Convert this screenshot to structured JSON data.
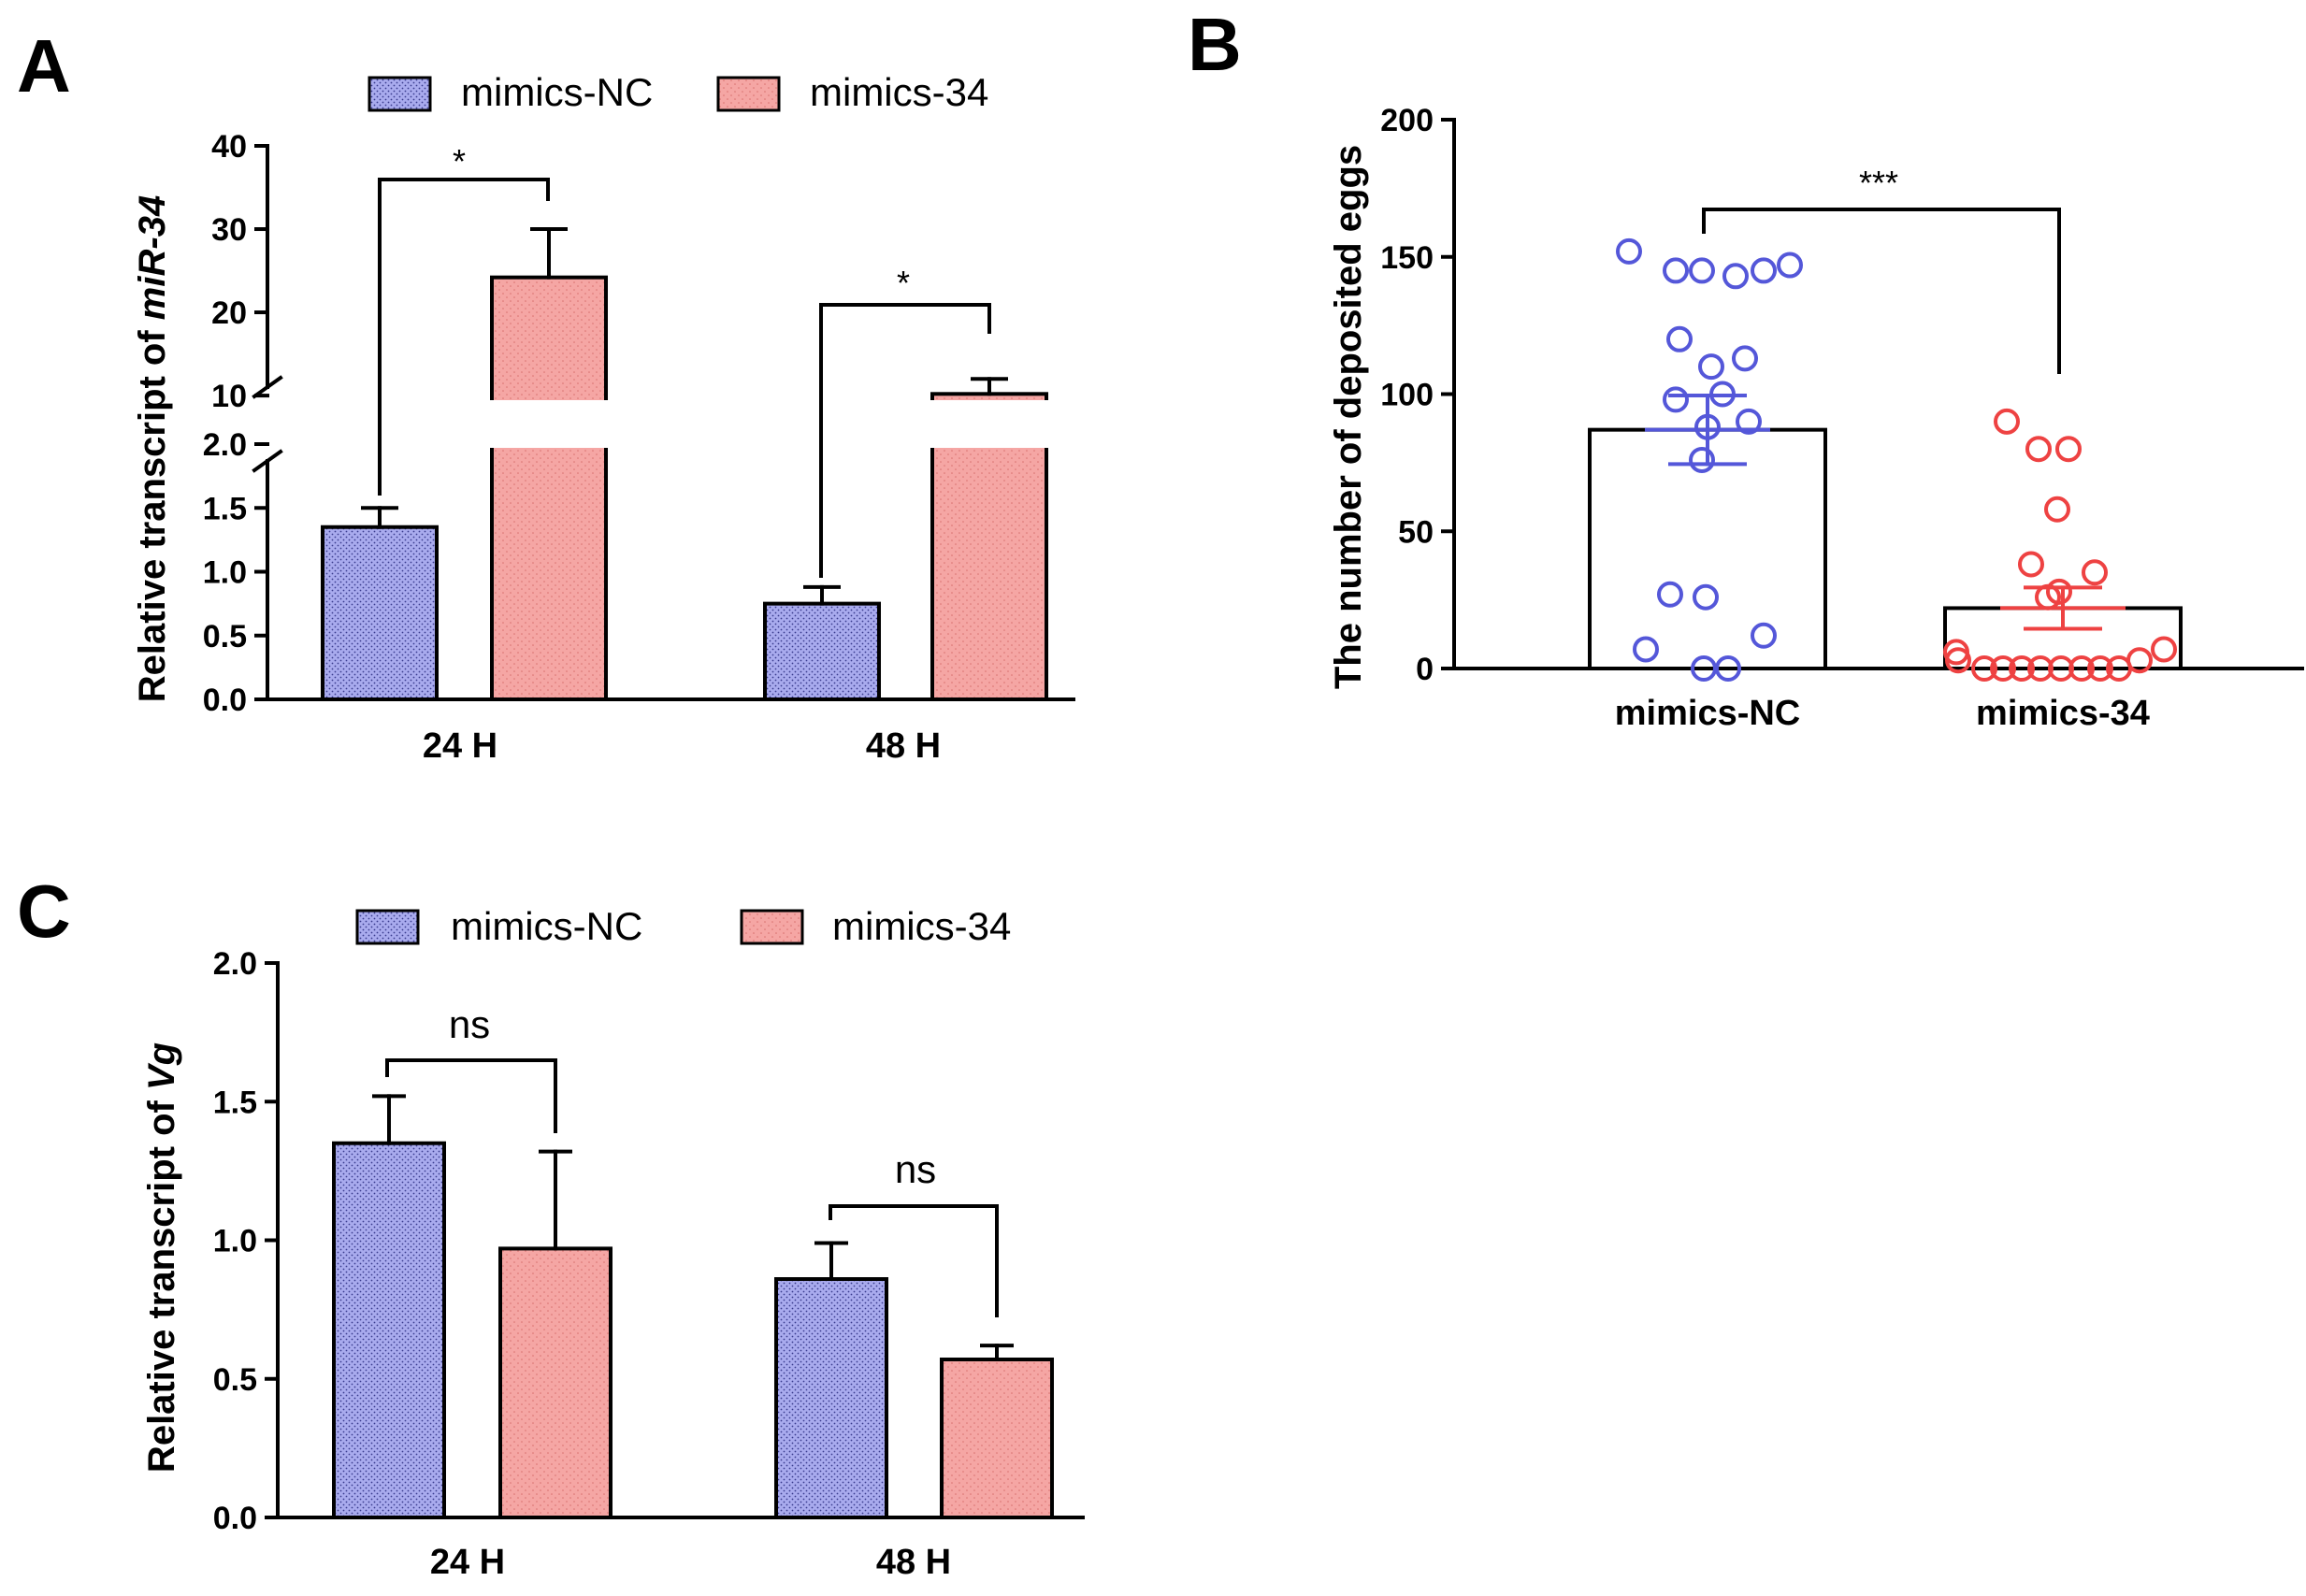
{
  "figure": {
    "panels": [
      "A",
      "B",
      "C"
    ]
  },
  "colors": {
    "nc": "#a9abee",
    "nc_dot": "#3a3c8e",
    "m34": "#f5a6a4",
    "m34_dot": "#d9706e",
    "b_nc": "#5457d9",
    "b_m34": "#ee4242",
    "ink": "#000000"
  },
  "legend": {
    "nc": "mimics-NC",
    "m34": "mimics-34"
  },
  "chart_data": [
    {
      "panel": "A",
      "type": "bar",
      "ylabel_prefix": "Relative transcript of ",
      "ylabel_italic": "miR-34",
      "categories": [
        "24 H",
        "48 H"
      ],
      "series": [
        {
          "name": "mimics-NC",
          "values": [
            1.35,
            0.75
          ],
          "errors": [
            0.15,
            0.13
          ]
        },
        {
          "name": "mimics-34",
          "values": [
            24.2,
            10.2
          ],
          "errors": [
            5.8,
            1.8
          ]
        }
      ],
      "axis_break": {
        "lower": [
          0,
          2
        ],
        "upper": [
          9,
          40
        ]
      },
      "lower_ticks": [
        "0.0",
        "0.5",
        "1.0",
        "1.5",
        "2.0"
      ],
      "upper_ticks": [
        "10",
        "20",
        "30",
        "40"
      ],
      "significance": [
        "*",
        "*"
      ]
    },
    {
      "panel": "B",
      "type": "scatter",
      "ylabel": "The number of deposited eggs",
      "categories": [
        "mimics-NC",
        "mimics-34"
      ],
      "ylim": [
        0,
        200
      ],
      "ticks": [
        "0",
        "50",
        "100",
        "150",
        "200"
      ],
      "means": [
        87,
        22
      ],
      "sem": [
        12.5,
        7.5
      ],
      "points": [
        [
          152,
          145,
          145,
          143,
          145,
          147,
          120,
          110,
          113,
          98,
          100,
          90,
          88,
          76,
          27,
          26,
          7,
          0,
          0,
          12
        ],
        [
          90,
          80,
          80,
          58,
          38,
          35,
          28,
          26,
          6,
          3,
          0,
          0,
          0,
          0,
          0,
          0,
          0,
          0,
          3,
          7
        ]
      ],
      "significance": "***"
    },
    {
      "panel": "C",
      "type": "bar",
      "ylabel_prefix": "Relative transcript of ",
      "ylabel_italic": "Vg",
      "categories": [
        "24 H",
        "48 H"
      ],
      "ylim": [
        0,
        2
      ],
      "ticks": [
        "0.0",
        "0.5",
        "1.0",
        "1.5",
        "2.0"
      ],
      "series": [
        {
          "name": "mimics-NC",
          "values": [
            1.35,
            0.86
          ],
          "errors": [
            0.17,
            0.13
          ]
        },
        {
          "name": "mimics-34",
          "values": [
            0.97,
            0.57
          ],
          "errors": [
            0.35,
            0.05
          ]
        }
      ],
      "significance": [
        "ns",
        "ns"
      ]
    }
  ]
}
